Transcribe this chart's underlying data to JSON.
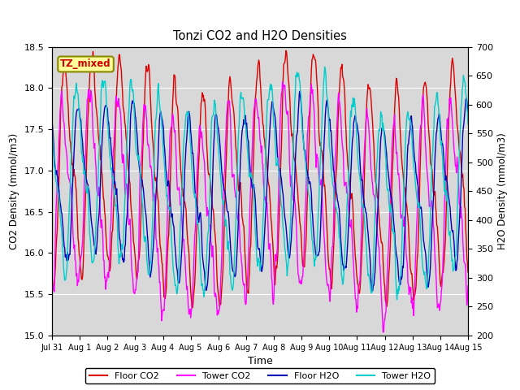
{
  "title": "Tonzi CO2 and H2O Densities",
  "xlabel": "Time",
  "ylabel_left": "CO2 Density (mmol/m3)",
  "ylabel_right": "H2O Density (mmol/m3)",
  "ylim_left": [
    15.0,
    18.5
  ],
  "ylim_right": [
    200,
    700
  ],
  "yticks_left": [
    15.0,
    15.5,
    16.0,
    16.5,
    17.0,
    17.5,
    18.0,
    18.5
  ],
  "yticks_right": [
    200,
    250,
    300,
    350,
    400,
    450,
    500,
    550,
    600,
    650,
    700
  ],
  "annotation_text": "TZ_mixed",
  "annotation_color": "#cc0000",
  "annotation_bg": "#ffff99",
  "annotation_edge": "#888800",
  "colors": {
    "floor_co2": "#dd0000",
    "tower_co2": "#ff00ff",
    "floor_h2o": "#0000bb",
    "tower_h2o": "#00cccc"
  },
  "legend_labels": [
    "Floor CO2",
    "Tower CO2",
    "Floor H2O",
    "Tower H2O"
  ],
  "bg_color": "#d8d8d8",
  "n_days": 15,
  "seed": 42
}
